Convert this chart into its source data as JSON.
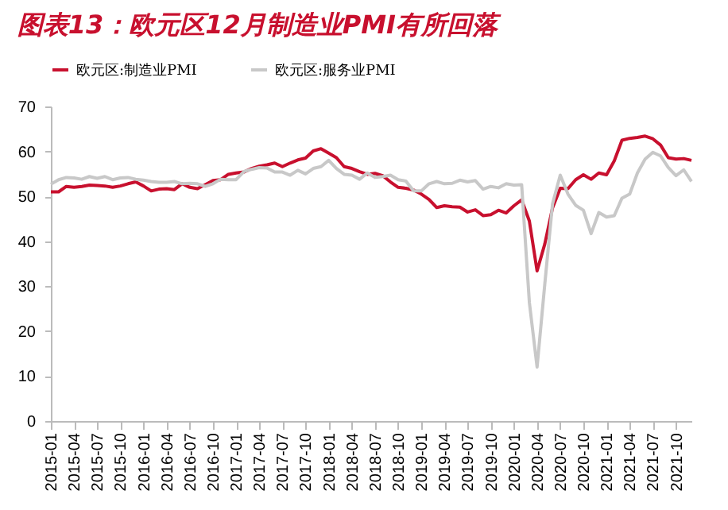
{
  "chart_data": {
    "type": "line",
    "title": "图表13：欧元区12月制造业PMI有所回落",
    "categories": [
      "2015-01",
      null,
      null,
      "2015-04",
      null,
      null,
      "2015-07",
      null,
      null,
      "2015-10",
      null,
      null,
      "2016-01",
      null,
      null,
      "2016-04",
      null,
      null,
      "2016-07",
      null,
      null,
      "2016-10",
      null,
      null,
      "2017-01",
      null,
      null,
      "2017-04",
      null,
      null,
      "2017-07",
      null,
      null,
      "2017-10",
      null,
      null,
      "2018-01",
      null,
      null,
      "2018-04",
      null,
      null,
      "2018-07",
      null,
      null,
      "2018-10",
      null,
      null,
      "2019-01",
      null,
      null,
      "2019-04",
      null,
      null,
      "2019-07",
      null,
      null,
      "2019-10",
      null,
      null,
      "2020-01",
      null,
      null,
      "2020-04",
      null,
      null,
      "2020-07",
      null,
      null,
      "2020-10",
      null,
      null,
      "2021-01",
      null,
      null,
      "2021-04",
      null,
      null,
      "2021-07",
      null,
      null,
      "2021-10",
      null,
      null
    ],
    "series": [
      {
        "name": "欧元区:制造业PMI",
        "color": "#c8102e",
        "values": [
          51.0,
          51.0,
          52.2,
          52.0,
          52.2,
          52.5,
          52.4,
          52.3,
          52.0,
          52.3,
          52.8,
          53.2,
          52.3,
          51.2,
          51.6,
          51.7,
          51.5,
          52.8,
          52.0,
          51.7,
          52.6,
          53.5,
          53.7,
          54.9,
          55.2,
          55.4,
          56.2,
          56.7,
          57.0,
          57.4,
          56.6,
          57.4,
          58.1,
          58.5,
          60.1,
          60.6,
          59.6,
          58.6,
          56.6,
          56.2,
          55.5,
          54.9,
          55.1,
          54.6,
          53.2,
          52.0,
          51.8,
          51.4,
          50.5,
          49.3,
          47.5,
          47.9,
          47.7,
          47.6,
          46.5,
          47.0,
          45.7,
          45.9,
          46.9,
          46.3,
          47.9,
          49.2,
          44.5,
          33.4,
          39.4,
          47.4,
          51.8,
          51.7,
          53.7,
          54.8,
          53.8,
          55.2,
          54.8,
          57.9,
          62.5,
          62.9,
          63.1,
          63.4,
          62.8,
          61.4,
          58.6,
          58.3,
          58.4,
          58.0
        ]
      },
      {
        "name": "欧元区:服务业PMI",
        "color": "#c8c8c8",
        "values": [
          52.7,
          53.7,
          54.2,
          54.1,
          53.8,
          54.4,
          54.0,
          54.4,
          53.7,
          54.1,
          54.2,
          53.8,
          53.6,
          53.3,
          53.1,
          53.1,
          53.3,
          52.8,
          52.9,
          52.8,
          52.2,
          52.8,
          53.8,
          53.7,
          53.7,
          55.5,
          56.0,
          56.4,
          56.3,
          55.4,
          55.4,
          54.7,
          55.8,
          55.0,
          56.2,
          56.6,
          58.0,
          56.2,
          54.9,
          54.7,
          53.8,
          55.2,
          54.2,
          54.4,
          54.7,
          53.7,
          53.4,
          51.2,
          51.2,
          52.8,
          53.3,
          52.8,
          52.9,
          53.6,
          53.2,
          53.5,
          51.6,
          52.2,
          51.9,
          52.8,
          52.5,
          52.6,
          26.4,
          12.0,
          30.5,
          48.3,
          54.7,
          50.5,
          48.0,
          46.9,
          41.7,
          46.4,
          45.4,
          45.7,
          49.6,
          50.5,
          55.2,
          58.3,
          59.8,
          59.0,
          56.4,
          54.6,
          55.9,
          53.3
        ]
      }
    ],
    "ylim": [
      0,
      70
    ],
    "yticks": [
      0,
      10,
      20,
      30,
      40,
      50,
      60,
      70
    ],
    "grid": false,
    "legend": "top",
    "line_style": "solid",
    "marker": "none"
  }
}
